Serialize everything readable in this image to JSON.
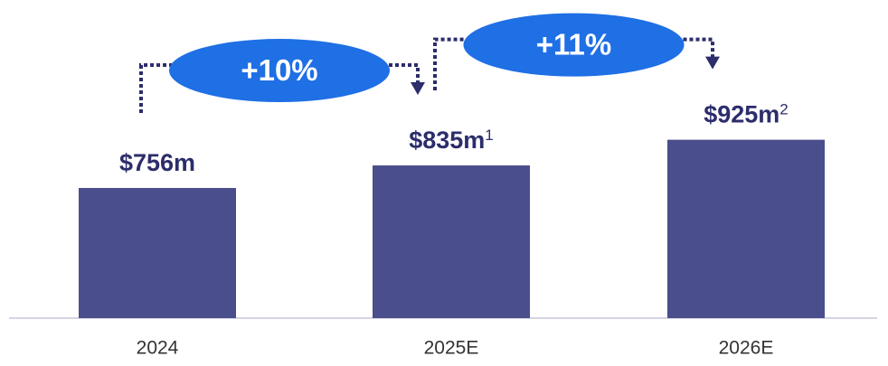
{
  "chart_data": {
    "type": "bar",
    "categories": [
      "2024",
      "2025E",
      "2026E"
    ],
    "values": [
      756,
      835,
      925
    ],
    "value_labels": [
      "$756m",
      "$835m",
      "$925m"
    ],
    "footnotes": [
      null,
      "1",
      "2"
    ],
    "annotations": [
      "+10%",
      "+11%"
    ],
    "color": "#4a4e8c",
    "annotation_color": "#1f6fe5",
    "ylim": [
      300,
      1250
    ]
  }
}
